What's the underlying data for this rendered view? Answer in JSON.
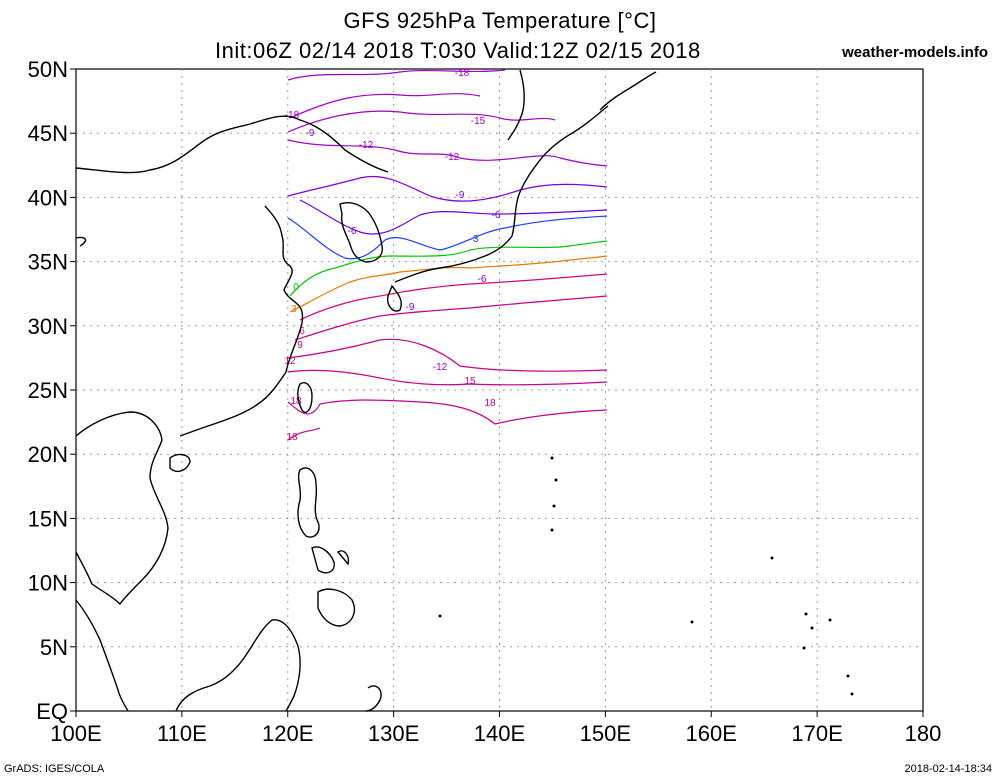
{
  "title": {
    "line1": "GFS 925hPa Temperature [°C]",
    "line2": "Init:06Z 02/14 2018 T:030 Valid:12Z 02/15 2018",
    "site": "weather-models.info"
  },
  "footer": {
    "left": "GrADS: IGES/COLA",
    "right": "2018-02-14-18:34"
  },
  "map": {
    "lon_range": [
      100,
      180
    ],
    "lat_range": [
      0,
      50
    ],
    "grid": "dotted",
    "x_ticks": [
      "100E",
      "110E",
      "120E",
      "130E",
      "140E",
      "150E",
      "160E",
      "170E",
      "180"
    ],
    "y_ticks": [
      "EQ",
      "5N",
      "10N",
      "15N",
      "20N",
      "25N",
      "30N",
      "35N",
      "40N",
      "45N",
      "50N"
    ],
    "data_domain_lon": [
      120,
      150
    ],
    "contours": [
      {
        "value": -18,
        "label": "-18",
        "color": "#a000c8"
      },
      {
        "value": -15,
        "label": "-15",
        "color": "#a000c8"
      },
      {
        "value": -12,
        "label": "-12",
        "color": "#a000c8"
      },
      {
        "value": -9,
        "label": "-9",
        "color": "#8200dc"
      },
      {
        "value": -6,
        "label": "-6",
        "color": "#6e00dc"
      },
      {
        "value": -3,
        "label": "-3",
        "color": "#1e3cff"
      },
      {
        "value": 0,
        "label": "0",
        "color": "#00c800"
      },
      {
        "value": 3,
        "label": "3",
        "color": "#e87800"
      },
      {
        "value": 6,
        "label": "6",
        "color": "#d20a78"
      },
      {
        "value": 9,
        "label": "9",
        "color": "#c8008c"
      },
      {
        "value": 12,
        "label": "12",
        "color": "#c8008c"
      },
      {
        "value": 15,
        "label": "15",
        "color": "#c8008c"
      },
      {
        "value": 18,
        "label": "18",
        "color": "#c8008c"
      }
    ]
  }
}
